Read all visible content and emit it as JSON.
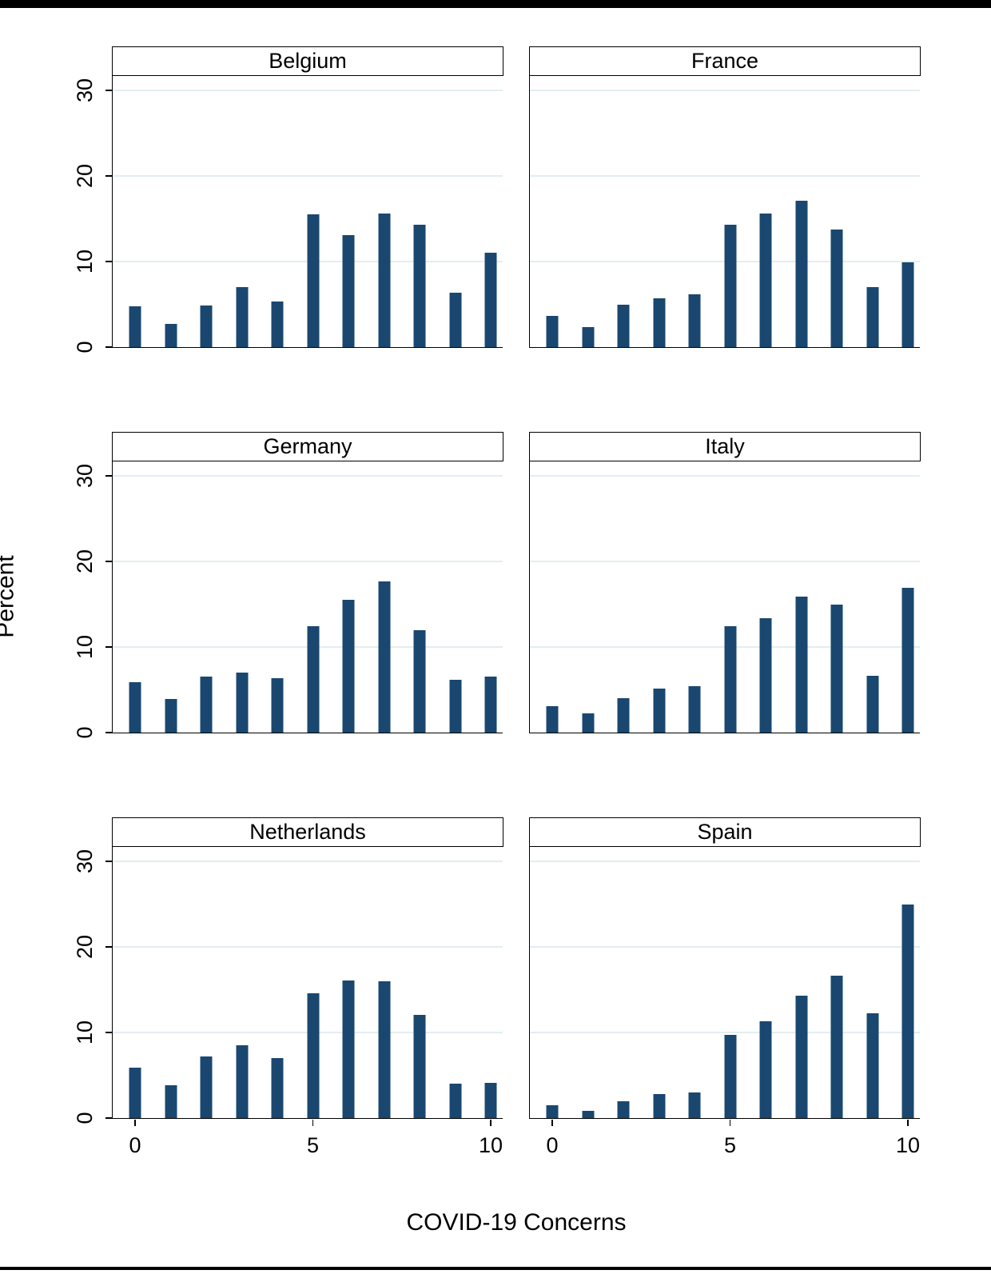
{
  "chart_data": {
    "type": "bar",
    "title": "",
    "xlabel": "COVID-19 Concerns",
    "ylabel": "Percent",
    "x": [
      0,
      1,
      2,
      3,
      4,
      5,
      6,
      7,
      8,
      9,
      10
    ],
    "xticks": [
      0,
      5,
      10
    ],
    "yticks": [
      0,
      10,
      20,
      30
    ],
    "ylim": [
      0,
      31.7
    ],
    "grid": true,
    "legend": "none",
    "bar_color": "#1a476f",
    "gridline_color": "#e2eef1",
    "layout": "3 rows x 2 columns of small-multiple histograms",
    "panels": [
      {
        "title": "Belgium",
        "values": [
          4.8,
          2.7,
          4.9,
          7.0,
          5.3,
          15.5,
          13.1,
          15.6,
          14.3,
          6.4,
          11.0
        ]
      },
      {
        "title": "France",
        "values": [
          3.6,
          2.3,
          5.0,
          5.7,
          6.2,
          14.3,
          15.6,
          17.1,
          13.7,
          7.0,
          9.9
        ]
      },
      {
        "title": "Germany",
        "values": [
          5.9,
          3.9,
          6.5,
          7.0,
          6.4,
          12.4,
          15.5,
          17.7,
          12.0,
          6.2,
          6.5
        ]
      },
      {
        "title": "Italy",
        "values": [
          3.1,
          2.2,
          4.0,
          5.1,
          5.4,
          12.4,
          13.4,
          15.9,
          15.0,
          6.6,
          16.9
        ]
      },
      {
        "title": "Netherlands",
        "values": [
          5.9,
          3.8,
          7.2,
          8.5,
          7.0,
          14.6,
          16.1,
          16.0,
          12.1,
          4.0,
          4.1
        ]
      },
      {
        "title": "Spain",
        "values": [
          1.5,
          0.8,
          2.0,
          2.8,
          3.0,
          9.7,
          11.3,
          14.3,
          16.6,
          12.2,
          25.0
        ]
      }
    ]
  }
}
